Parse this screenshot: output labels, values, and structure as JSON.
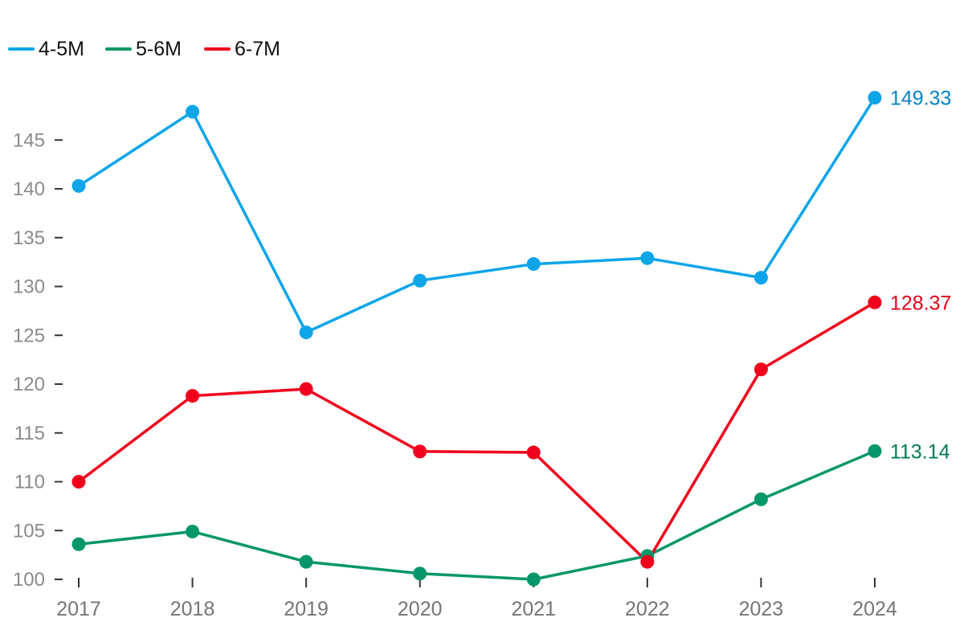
{
  "chart_data": {
    "type": "line",
    "title": "",
    "xlabel": "",
    "ylabel": "",
    "x": [
      "2017",
      "2018",
      "2019",
      "2020",
      "2021",
      "2022",
      "2023",
      "2024"
    ],
    "ylim": [
      100,
      150
    ],
    "yticks": [
      "100",
      "105",
      "110",
      "115",
      "120",
      "125",
      "130",
      "135",
      "140",
      "145"
    ],
    "grid": false,
    "legend_position": "top-left",
    "series": [
      {
        "name": "4-5M",
        "color": "#0ea5e9",
        "label_color": "#0284c7",
        "values": [
          140.3,
          147.9,
          125.3,
          130.6,
          132.3,
          132.9,
          130.9,
          149.33
        ],
        "end_label": "149.33"
      },
      {
        "name": "5-6M",
        "color": "#059669",
        "label_color": "#047857",
        "values": [
          103.6,
          104.9,
          101.8,
          100.6,
          100.0,
          102.4,
          108.2,
          113.14
        ],
        "end_label": "113.14"
      },
      {
        "name": "6-7M",
        "color": "#f0001c",
        "label_color": "#e00018",
        "values": [
          110.0,
          118.8,
          119.5,
          113.1,
          113.0,
          101.8,
          121.5,
          128.37
        ],
        "end_label": "128.37"
      }
    ]
  }
}
